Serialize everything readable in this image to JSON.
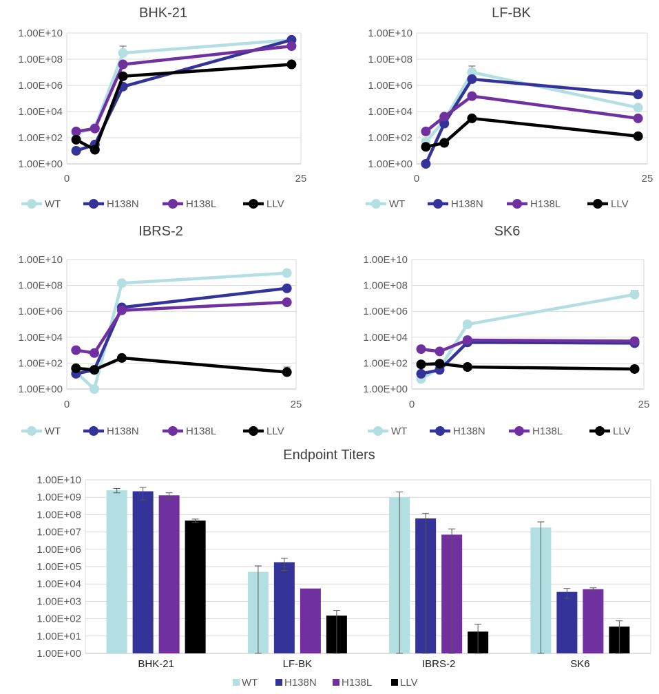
{
  "colors": {
    "WT": "#b3dfe3",
    "H138N": "#33339a",
    "H138L": "#7030a0",
    "LLV": "#000000"
  },
  "chart_data": [
    {
      "type": "line",
      "title": "BHK-21",
      "yscale": "log10",
      "ylim": [
        1,
        10000000000
      ],
      "xlim": [
        0,
        25
      ],
      "yticks": [
        "1.00E+00",
        "1.00E+02",
        "1.00E+04",
        "1.00E+06",
        "1.00E+08",
        "1.00E+10"
      ],
      "xticks": [
        "0",
        "25"
      ],
      "x": [
        1,
        3,
        6,
        24
      ],
      "series": [
        {
          "name": "WT",
          "values": [
            200,
            600,
            300000000,
            3000000000
          ],
          "errors_up": [
            0,
            0,
            700000000,
            0
          ]
        },
        {
          "name": "H138N",
          "values": [
            10,
            30,
            800000,
            3000000000
          ],
          "errors_up": [
            0,
            0,
            0,
            0
          ]
        },
        {
          "name": "H138L",
          "values": [
            300,
            500,
            40000000,
            1000000000
          ],
          "errors_up": [
            0,
            0,
            0,
            0
          ]
        },
        {
          "name": "LLV",
          "values": [
            70,
            12,
            5000000,
            40000000
          ],
          "errors_up": [
            0,
            0,
            0,
            0
          ]
        }
      ],
      "legend": [
        "WT",
        "H138N",
        "H138L",
        "LLV"
      ]
    },
    {
      "type": "line",
      "title": "LF-BK",
      "yscale": "log10",
      "ylim": [
        1,
        10000000000
      ],
      "xlim": [
        0,
        25
      ],
      "yticks": [
        "1.00E+00",
        "1.00E+02",
        "1.00E+04",
        "1.00E+06",
        "1.00E+08",
        "1.00E+10"
      ],
      "xticks": [
        "0",
        "25"
      ],
      "x": [
        1,
        3,
        6,
        24
      ],
      "series": [
        {
          "name": "WT",
          "values": [
            50,
            2000,
            10000000,
            20000
          ],
          "errors_up": [
            0,
            0,
            20000000,
            0
          ]
        },
        {
          "name": "H138N",
          "values": [
            1,
            1200,
            3000000,
            200000
          ],
          "errors_up": [
            0,
            0,
            0,
            0
          ]
        },
        {
          "name": "H138L",
          "values": [
            300,
            4000,
            150000,
            3000
          ],
          "errors_up": [
            0,
            0,
            0,
            0
          ]
        },
        {
          "name": "LLV",
          "values": [
            20,
            40,
            3000,
            130
          ],
          "errors_up": [
            0,
            0,
            0,
            0
          ]
        }
      ],
      "legend": [
        "WT",
        "H138N",
        "H138L",
        "LLV"
      ]
    },
    {
      "type": "line",
      "title": "IBRS-2",
      "yscale": "log10",
      "ylim": [
        1,
        10000000000
      ],
      "xlim": [
        0,
        25
      ],
      "yticks": [
        "1.00E+00",
        "1.00E+02",
        "1.00E+04",
        "1.00E+06",
        "1.00E+08",
        "1.00E+10"
      ],
      "xticks": [
        "0",
        "25"
      ],
      "x": [
        1,
        3,
        6,
        24
      ],
      "series": [
        {
          "name": "WT",
          "values": [
            20,
            1,
            150000000,
            900000000
          ],
          "errors_up": [
            0,
            0,
            100000000,
            700000000
          ]
        },
        {
          "name": "H138N",
          "values": [
            15,
            30,
            2000000,
            60000000
          ],
          "errors_up": [
            0,
            0,
            0,
            0
          ]
        },
        {
          "name": "H138L",
          "values": [
            1000,
            600,
            1200000,
            5000000
          ],
          "errors_up": [
            0,
            0,
            0,
            0
          ]
        },
        {
          "name": "LLV",
          "values": [
            40,
            30,
            250,
            20
          ],
          "errors_up": [
            0,
            0,
            0,
            30
          ]
        }
      ],
      "legend": [
        "WT",
        "H138N",
        "H138L",
        "LLV"
      ]
    },
    {
      "type": "line",
      "title": "SK6",
      "yscale": "log10",
      "ylim": [
        1,
        10000000000
      ],
      "xlim": [
        0,
        25
      ],
      "yticks": [
        "1.00E+00",
        "1.00E+02",
        "1.00E+04",
        "1.00E+06",
        "1.00E+08",
        "1.00E+10"
      ],
      "xticks": [
        "0",
        "25"
      ],
      "x": [
        1,
        3,
        6,
        24
      ],
      "series": [
        {
          "name": "WT",
          "values": [
            6,
            40,
            100000,
            20000000
          ],
          "errors_up": [
            0,
            0,
            0,
            20000000
          ]
        },
        {
          "name": "H138N",
          "values": [
            15,
            30,
            4000,
            3500
          ],
          "errors_up": [
            0,
            0,
            0,
            0
          ]
        },
        {
          "name": "H138L",
          "values": [
            1200,
            800,
            6000,
            5000
          ],
          "errors_up": [
            0,
            0,
            0,
            0
          ]
        },
        {
          "name": "LLV",
          "values": [
            80,
            90,
            50,
            35
          ],
          "errors_up": [
            0,
            0,
            0,
            30
          ]
        }
      ],
      "legend": [
        "WT",
        "H138N",
        "H138L",
        "LLV"
      ]
    },
    {
      "type": "bar",
      "title": "Endpoint Titers",
      "yscale": "log10",
      "ylim": [
        1,
        10000000000
      ],
      "yticks": [
        "1.00E+00",
        "1.00E+01",
        "1.00E+02",
        "1.00E+03",
        "1.00E+04",
        "1.00E+05",
        "1.00E+06",
        "1.00E+07",
        "1.00E+08",
        "1.00E+09",
        "1.00E+10"
      ],
      "categories": [
        "BHK-21",
        "LF-BK",
        "IBRS-2",
        "SK6"
      ],
      "series": [
        {
          "name": "WT",
          "values": [
            2500000000,
            50000,
            1000000000,
            18000000
          ],
          "errors": [
            700000000,
            60000,
            1000000000,
            20000000
          ]
        },
        {
          "name": "H138N",
          "values": [
            2200000000,
            180000,
            60000000,
            3500
          ],
          "errors": [
            1500000000,
            120000,
            60000000,
            2000
          ]
        },
        {
          "name": "H138L",
          "values": [
            1300000000,
            5500,
            7000000,
            5000
          ],
          "errors": [
            500000000,
            0,
            8000000,
            1000
          ]
        },
        {
          "name": "LLV",
          "values": [
            45000000,
            150,
            18,
            35
          ],
          "errors": [
            10000000,
            150,
            30,
            40
          ]
        }
      ],
      "legend": [
        "WT",
        "H138N",
        "H138L",
        "LLV"
      ]
    }
  ]
}
